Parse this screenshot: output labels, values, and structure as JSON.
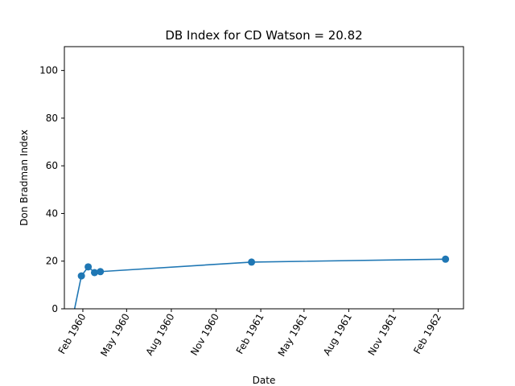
{
  "chart_data": {
    "type": "line",
    "title": "DB Index for CD Watson = 20.82",
    "xlabel": "Date",
    "ylabel": "Don Bradman Index",
    "ylim": [
      0,
      110
    ],
    "yticks": [
      0,
      20,
      40,
      60,
      80,
      100
    ],
    "xlim": [
      "1959-12-25",
      "1962-03-25"
    ],
    "xticks": [
      {
        "date": "1960-02-01",
        "label": "Feb 1960"
      },
      {
        "date": "1960-05-01",
        "label": "May 1960"
      },
      {
        "date": "1960-08-01",
        "label": "Aug 1960"
      },
      {
        "date": "1960-11-01",
        "label": "Nov 1960"
      },
      {
        "date": "1961-02-01",
        "label": "Feb 1961"
      },
      {
        "date": "1961-05-01",
        "label": "May 1961"
      },
      {
        "date": "1961-08-01",
        "label": "Aug 1961"
      },
      {
        "date": "1961-11-01",
        "label": "Nov 1961"
      },
      {
        "date": "1962-02-01",
        "label": "Feb 1962"
      }
    ],
    "grid": false,
    "series": [
      {
        "color": "#1f77b4",
        "points": [
          {
            "x": "1960-01-15",
            "y": 0.0,
            "marker": false
          },
          {
            "x": "1960-01-29",
            "y": 13.8,
            "marker": true
          },
          {
            "x": "1960-02-12",
            "y": 17.6,
            "marker": true
          },
          {
            "x": "1960-02-25",
            "y": 15.2,
            "marker": true
          },
          {
            "x": "1960-03-08",
            "y": 15.6,
            "marker": true
          },
          {
            "x": "1961-01-13",
            "y": 19.6,
            "marker": true
          },
          {
            "x": "1962-02-16",
            "y": 20.82,
            "marker": true
          }
        ]
      }
    ]
  }
}
